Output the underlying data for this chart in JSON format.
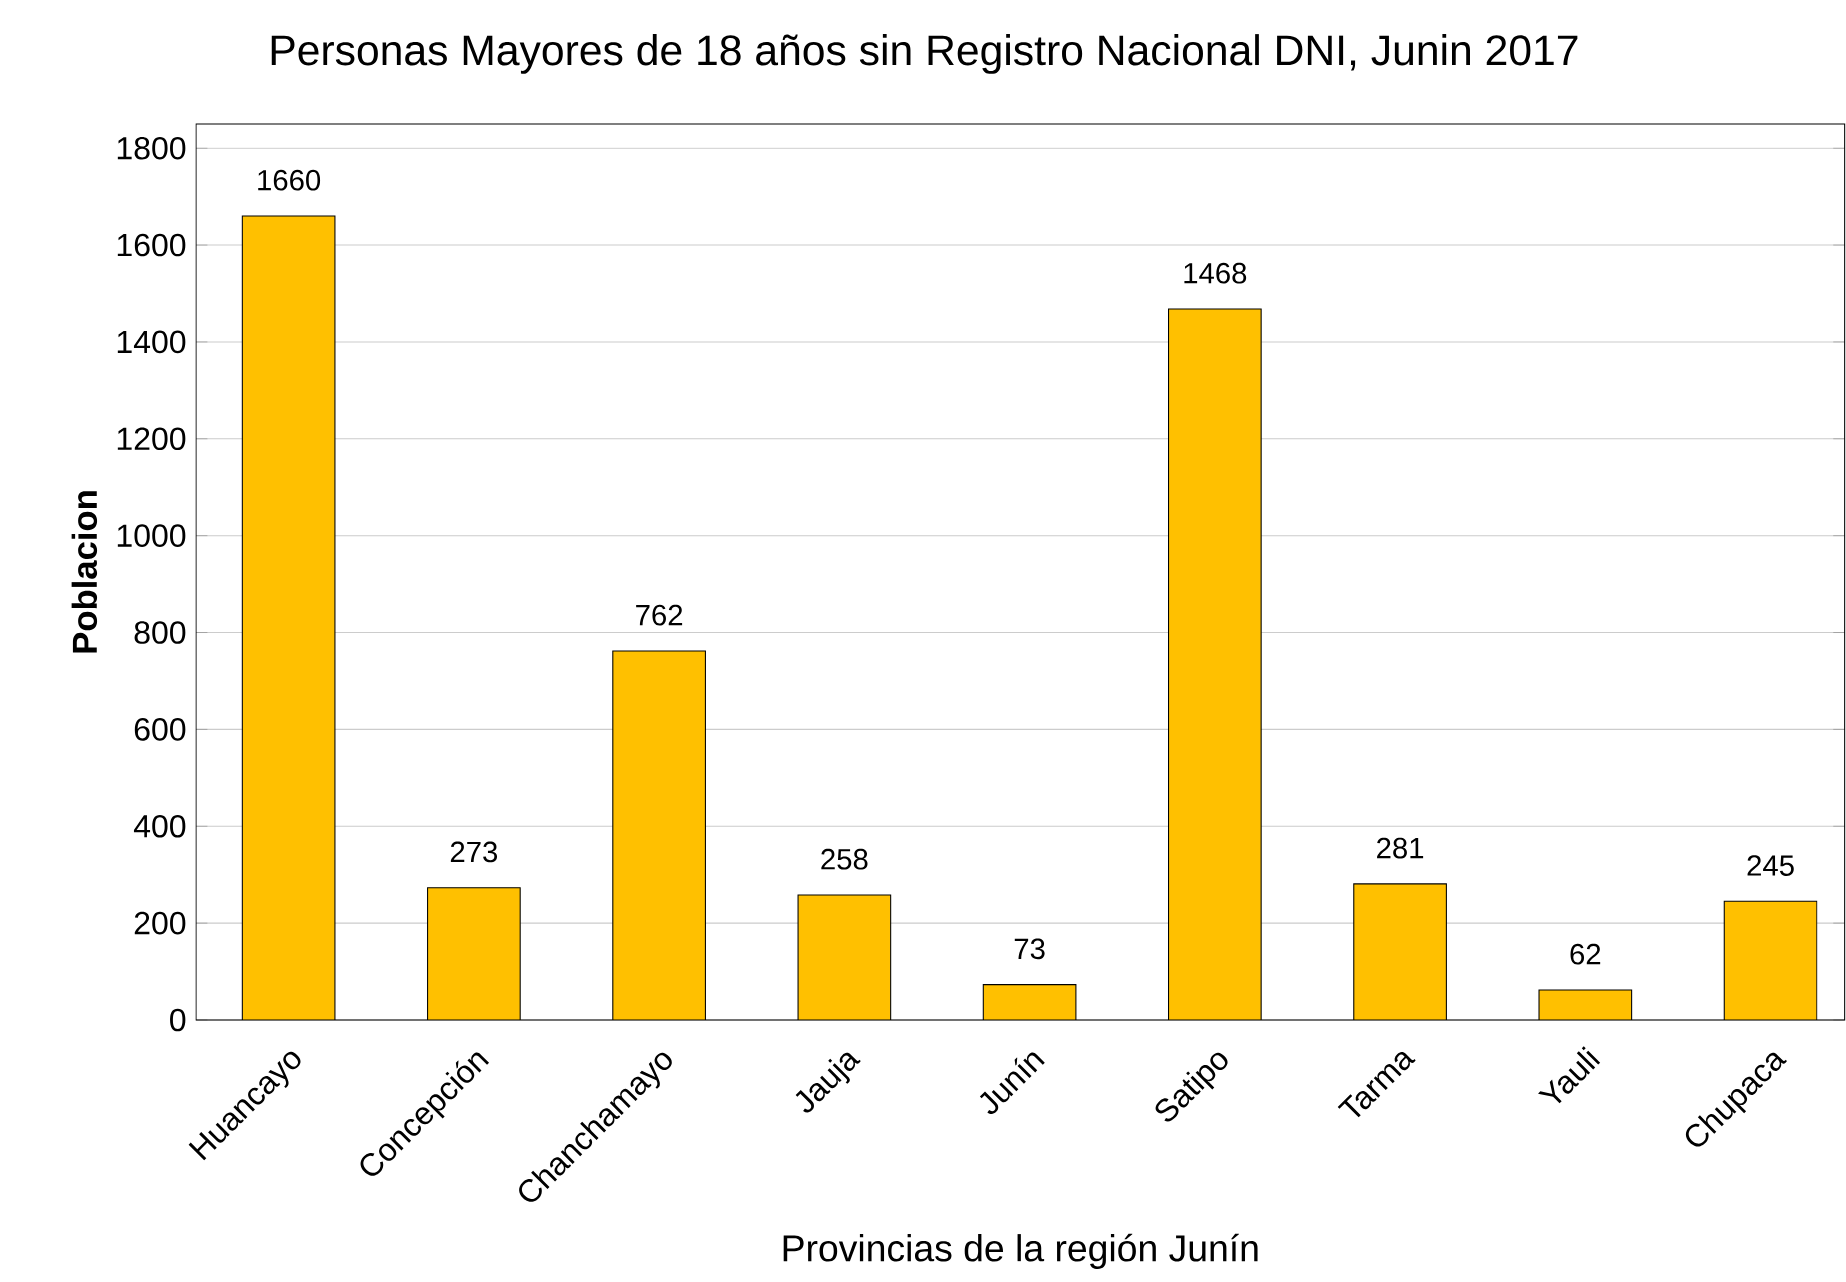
{
  "chart_data": {
    "type": "bar",
    "title": "Personas Mayores de 18 años sin Registro Nacional DNI, Junin 2017",
    "xlabel": "Provincias de la región Junín",
    "ylabel": "Poblacion",
    "categories": [
      "Huancayo",
      "Concepción",
      "Chanchamayo",
      "Jauja",
      "Junín",
      "Satipo",
      "Tarma",
      "Yauli",
      "Chupaca"
    ],
    "values": [
      1660,
      273,
      762,
      258,
      73,
      1468,
      281,
      62,
      245
    ],
    "color": "#ffc000",
    "ylim": [
      0,
      1850
    ],
    "yticks": [
      0,
      200,
      400,
      600,
      800,
      1000,
      1200,
      1400,
      1600,
      1800
    ],
    "grid": "y",
    "data_labels": true
  }
}
